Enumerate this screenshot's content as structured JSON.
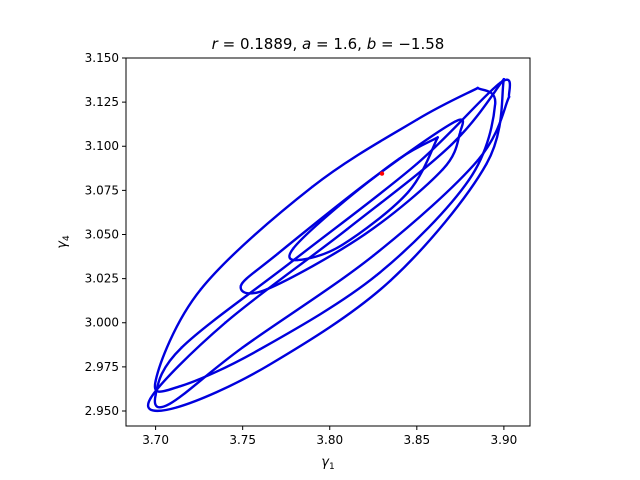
{
  "chart_data": {
    "type": "scatter",
    "title": "r = 0.1889, a = 1.6, b = −1.58",
    "title_parts": {
      "r": "0.1889",
      "a": "1.6",
      "b": "−1.58"
    },
    "xlabel": "γ",
    "xlabel_sub": "1",
    "ylabel": "γ",
    "ylabel_sub": "4",
    "xlim": [
      3.683,
      3.915
    ],
    "ylim": [
      2.9415,
      3.15
    ],
    "xticks": [
      3.7,
      3.75,
      3.8,
      3.85,
      3.9
    ],
    "xtick_labels": [
      "3.70",
      "3.75",
      "3.80",
      "3.85",
      "3.90"
    ],
    "yticks": [
      2.95,
      2.975,
      3.0,
      3.025,
      3.05,
      3.075,
      3.1,
      3.125,
      3.15
    ],
    "ytick_labels": [
      "2.950",
      "2.975",
      "3.000",
      "3.025",
      "3.050",
      "3.075",
      "3.100",
      "3.125",
      "3.150"
    ],
    "grid": false,
    "series": [
      {
        "color": "#0000dd",
        "marker_color": "#0000ff",
        "x": [
          3.862,
          3.84,
          3.805,
          3.779,
          3.7815,
          3.807,
          3.845,
          3.862,
          3.875,
          3.865,
          3.82,
          3.764,
          3.749,
          3.77,
          3.825,
          3.872,
          3.875,
          3.903,
          3.885,
          3.825,
          3.75,
          3.708,
          3.7,
          3.715,
          3.78,
          3.85,
          3.898,
          3.903,
          3.885,
          3.85,
          3.79,
          3.726,
          3.7,
          3.714,
          3.76,
          3.827,
          3.88,
          3.895,
          3.885,
          3.9,
          3.87,
          3.81,
          3.74,
          3.697,
          3.712,
          3.765,
          3.835,
          3.89,
          3.9
        ],
        "y": [
          3.105,
          3.093,
          3.066,
          3.042,
          3.0355,
          3.044,
          3.074,
          3.105,
          3.108,
          3.087,
          3.05,
          3.019,
          3.021,
          3.039,
          3.082,
          3.114,
          3.108,
          3.128,
          3.092,
          3.038,
          2.986,
          2.954,
          2.959,
          2.986,
          3.036,
          3.09,
          3.136,
          3.128,
          3.133,
          3.115,
          3.077,
          3.019,
          2.967,
          2.964,
          2.985,
          3.027,
          3.081,
          3.124,
          3.133,
          3.138,
          3.101,
          3.053,
          3.0,
          2.957,
          2.952,
          2.976,
          3.024,
          3.09,
          3.138
        ],
        "segments": [
          [
            0,
            7
          ],
          [
            8,
            16
          ],
          [
            17,
            27
          ],
          [
            28,
            38
          ],
          [
            39,
            48
          ]
        ]
      }
    ],
    "point": {
      "x": 3.83,
      "y": 3.0845,
      "color": "#ff0000"
    }
  }
}
